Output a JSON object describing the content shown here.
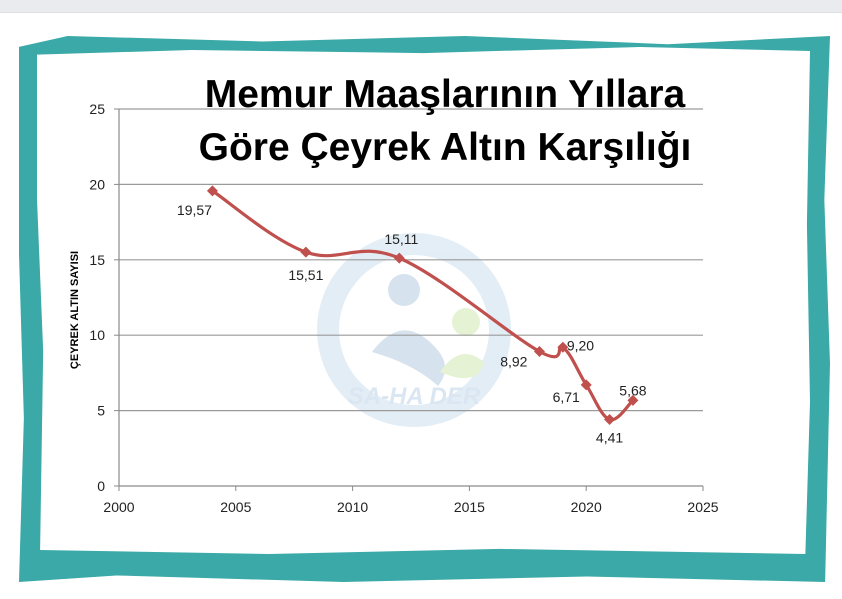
{
  "chart_data": {
    "type": "line",
    "title": "Memur Maaşlarının Yıllara Göre Çeyrek Altın Karşılığı",
    "title_lines": [
      "Memur Maaşlarının Yıllara",
      "Göre Çeyrek Altın Karşılığı"
    ],
    "xlabel": "",
    "ylabel": "ÇEYREK ALTIN SAYISI",
    "xlim": [
      2000,
      2025
    ],
    "ylim": [
      0,
      25
    ],
    "x_ticks": [
      2000,
      2005,
      2010,
      2015,
      2020,
      2025
    ],
    "y_ticks": [
      0,
      5,
      10,
      15,
      20,
      25
    ],
    "grid": "horizontal",
    "series": [
      {
        "color": "#c0504d",
        "x": [
          2004,
          2008,
          2012,
          2018,
          2019,
          2020,
          2021,
          2022
        ],
        "y": [
          19.57,
          15.51,
          15.11,
          8.92,
          9.2,
          6.71,
          4.41,
          5.68
        ],
        "labels": [
          "19,57",
          "15,51",
          "15,11",
          "8,92",
          "9,20",
          "6,71",
          "4,41",
          "5,68"
        ]
      }
    ],
    "watermark": "SA-HA DER"
  },
  "colors": {
    "frame": "#3aa9a8",
    "line": "#c0504d",
    "grid": "#9a9a9a"
  }
}
